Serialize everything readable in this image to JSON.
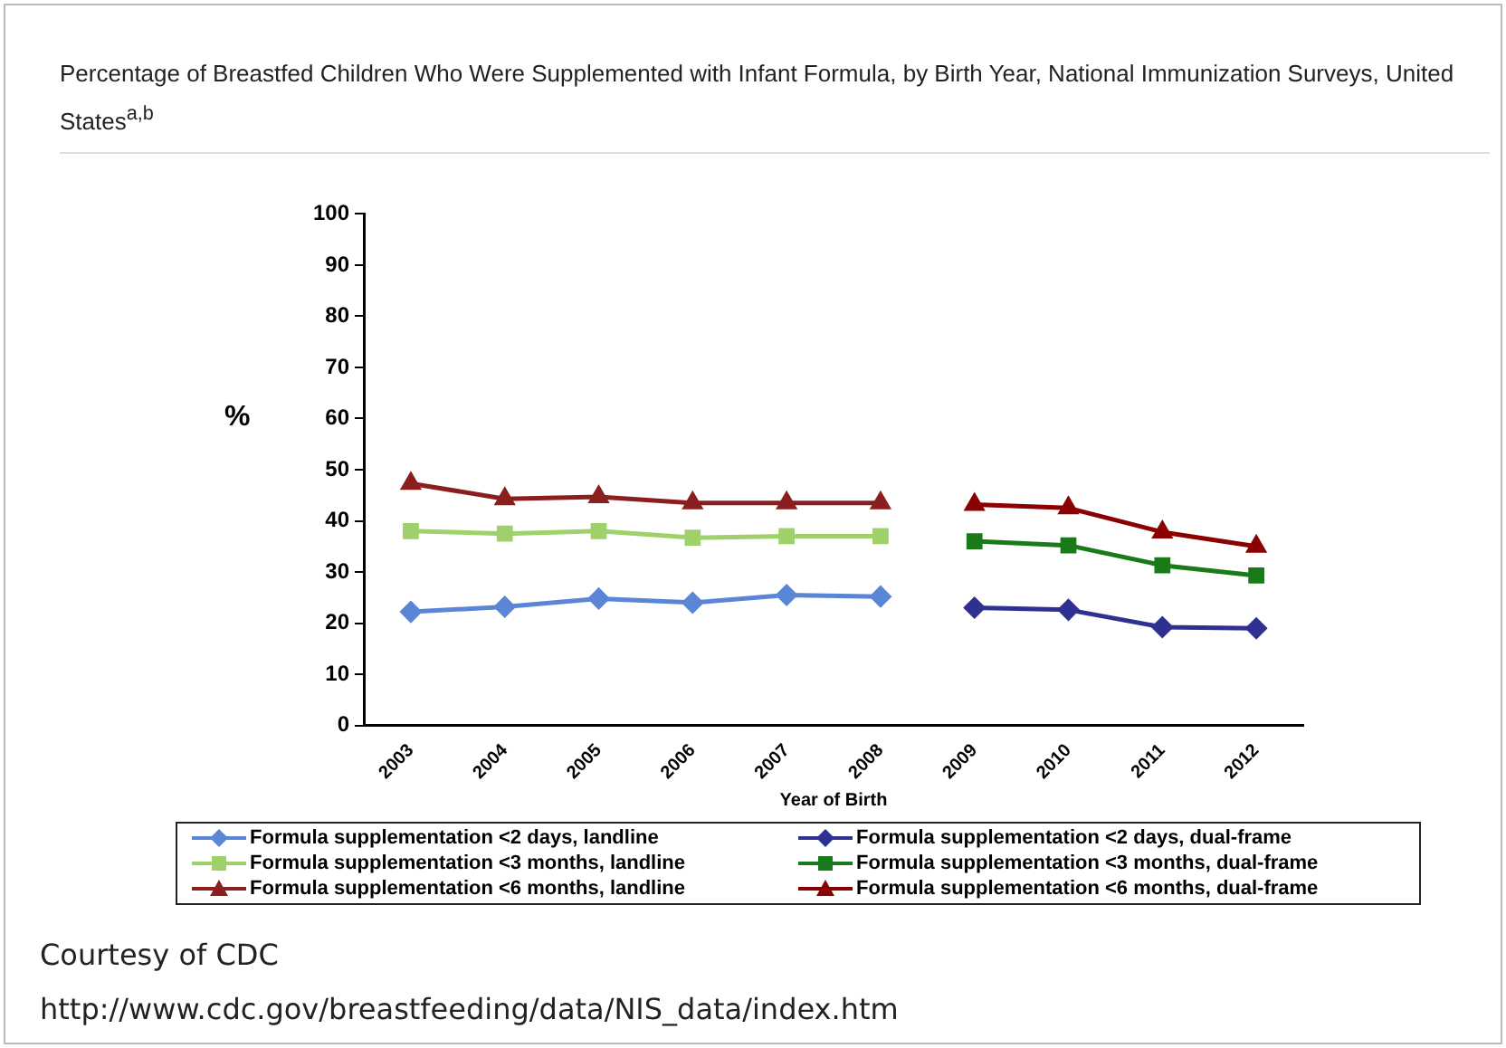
{
  "chart_data": {
    "type": "line",
    "title": "Percentage of Breastfed Children Who Were Supplemented with Infant Formula, by Birth Year, National Immunization Surveys, United States$^{a,b}$",
    "xlabel": "Year of Birth",
    "ylabel": "%",
    "categories": [
      "2003",
      "2004",
      "2005",
      "2006",
      "2007",
      "2008",
      "2009",
      "2010",
      "2011",
      "2012"
    ],
    "ylim": [
      0,
      100
    ],
    "yticks": [
      0,
      10,
      20,
      30,
      40,
      50,
      60,
      70,
      80,
      90,
      100
    ],
    "grid": false,
    "legend": "bottom",
    "series": [
      {
        "name": "Formula supplementation <2 days, landline",
        "color": "#5b86d6",
        "marker": "diamond",
        "values": [
          22.2,
          23.2,
          24.8,
          24,
          25.5,
          25.2,
          null,
          null,
          null,
          null
        ]
      },
      {
        "name": "Formula supplementation <2 days, dual-frame",
        "color": "#2e3192",
        "marker": "diamond",
        "values": [
          null,
          null,
          null,
          null,
          null,
          null,
          23,
          22.6,
          19.2,
          19
        ]
      },
      {
        "name": "Formula supplementation <3 months, landline",
        "color": "#9fd16a",
        "marker": "square",
        "values": [
          38,
          37.5,
          38,
          36.7,
          37,
          37,
          null,
          null,
          null,
          null
        ]
      },
      {
        "name": "Formula supplementation <3 months, dual-frame",
        "color": "#1a7a1a",
        "marker": "square",
        "values": [
          null,
          null,
          null,
          null,
          null,
          null,
          36,
          35.2,
          31.3,
          29.3
        ]
      },
      {
        "name": "Formula supplementation <6 months, landline",
        "color": "#8b1f1f",
        "marker": "triangle",
        "values": [
          47.3,
          44.3,
          44.7,
          43.5,
          43.5,
          43.5,
          null,
          null,
          null,
          null
        ]
      },
      {
        "name": "Formula supplementation <6 months, dual-frame",
        "color": "#8b0000",
        "marker": "triangle",
        "values": [
          null,
          null,
          null,
          null,
          null,
          null,
          43.2,
          42.5,
          37.8,
          35
        ]
      }
    ],
    "annotations": [
      "Courtesy of CDC",
      "http://www.cdc.gov/breastfeeding/data/NIS_data/index.htm"
    ]
  }
}
